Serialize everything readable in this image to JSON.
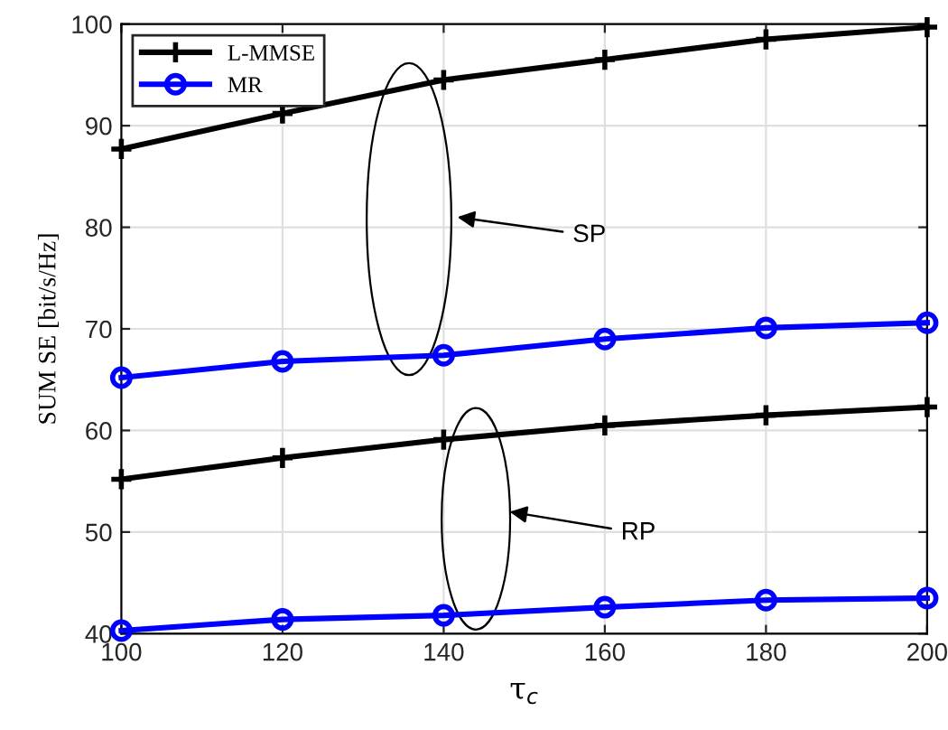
{
  "chart_data": {
    "type": "line",
    "xlabel": "τ$_{c}$",
    "ylabel": "SUM SE [bit/s/Hz]",
    "x": [
      100,
      120,
      140,
      160,
      180,
      200
    ],
    "series": [
      {
        "name": "L-MMSE",
        "color": "#000000",
        "marker": "cross",
        "values": [
          87.7,
          91.2,
          94.5,
          96.5,
          98.5,
          99.7
        ]
      },
      {
        "name": "MR",
        "color": "#0000ff",
        "marker": "circle",
        "values": [
          65.2,
          66.8,
          67.4,
          69.0,
          70.1,
          70.6
        ]
      },
      {
        "color": "#000000",
        "marker": "cross",
        "values": [
          55.2,
          57.3,
          59.1,
          60.5,
          61.5,
          62.3
        ]
      },
      {
        "color": "#0000ff",
        "marker": "circle",
        "values": [
          40.3,
          41.4,
          41.8,
          42.6,
          43.3,
          43.5
        ]
      }
    ],
    "annotations": [
      "SP",
      "RP"
    ],
    "xlim": [
      100,
      200
    ],
    "xticks": [
      100,
      120,
      140,
      160,
      180,
      200
    ],
    "ylim": [
      40,
      100
    ],
    "yticks": [
      40,
      50,
      60,
      70,
      80,
      90,
      100
    ],
    "grid": true,
    "legend": "top left",
    "line_style": "solid"
  }
}
